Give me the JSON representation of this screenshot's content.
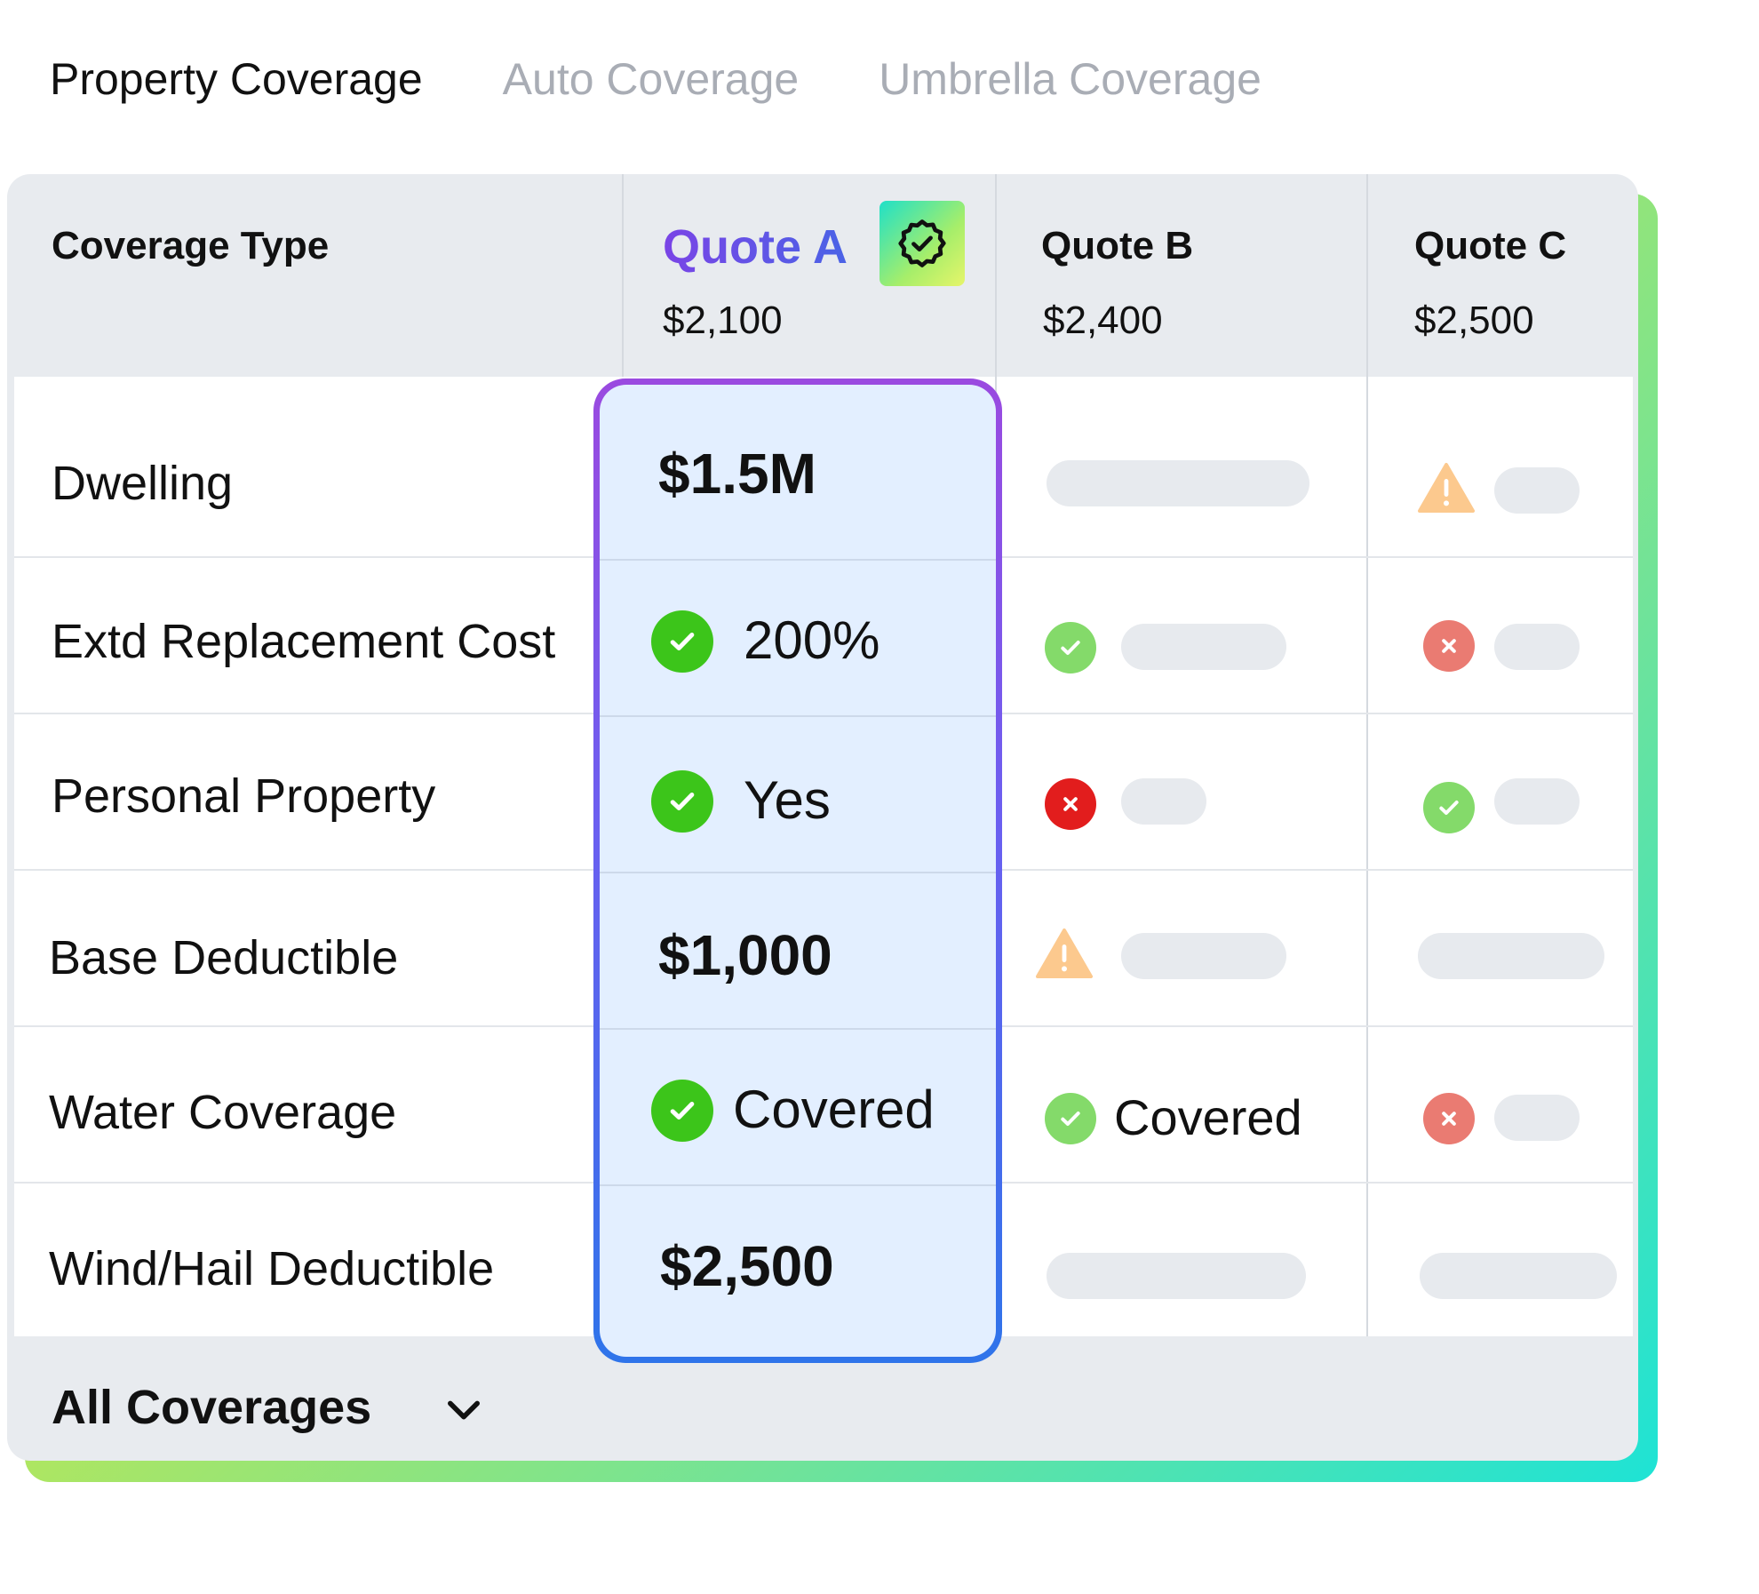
{
  "tabs": [
    {
      "label": "Property Coverage",
      "active": true
    },
    {
      "label": "Auto Coverage",
      "active": false
    },
    {
      "label": "Umbrella Coverage",
      "active": false
    }
  ],
  "table": {
    "header": {
      "coverage_type": "Coverage Type",
      "quotes": [
        {
          "name": "Quote A",
          "price": "$2,100",
          "recommended": true
        },
        {
          "name": "Quote B",
          "price": "$2,400"
        },
        {
          "name": "Quote C",
          "price": "$2,500"
        }
      ]
    },
    "rows": [
      {
        "label": "Dwelling",
        "quote_a": "$1.5M"
      },
      {
        "label": "Extd Replacement Cost",
        "quote_a": "200%"
      },
      {
        "label": "Personal Property",
        "quote_a": "Yes"
      },
      {
        "label": "Base Deductible",
        "quote_a": "$1,000"
      },
      {
        "label": "Water Coverage",
        "quote_a": "Covered",
        "quote_b": "Covered"
      },
      {
        "label": "Wind/Hail Deductible",
        "quote_a": "$2,500"
      }
    ],
    "footer": {
      "label": "All Coverages"
    }
  },
  "icons": {
    "check": "check-circle-icon",
    "error": "x-circle-icon",
    "warning": "warning-icon",
    "badge": "verified-badge-icon",
    "chevron": "chevron-down-icon"
  },
  "colors": {
    "check_strong": "#3cc51a",
    "check_soft": "#84da6a",
    "error_strong": "#e21d1d",
    "error_soft": "#ea7b72",
    "warning": "#fcc98e",
    "quote_a_accent": "#6a4fe0",
    "highlight_fill": "#e3efff"
  }
}
